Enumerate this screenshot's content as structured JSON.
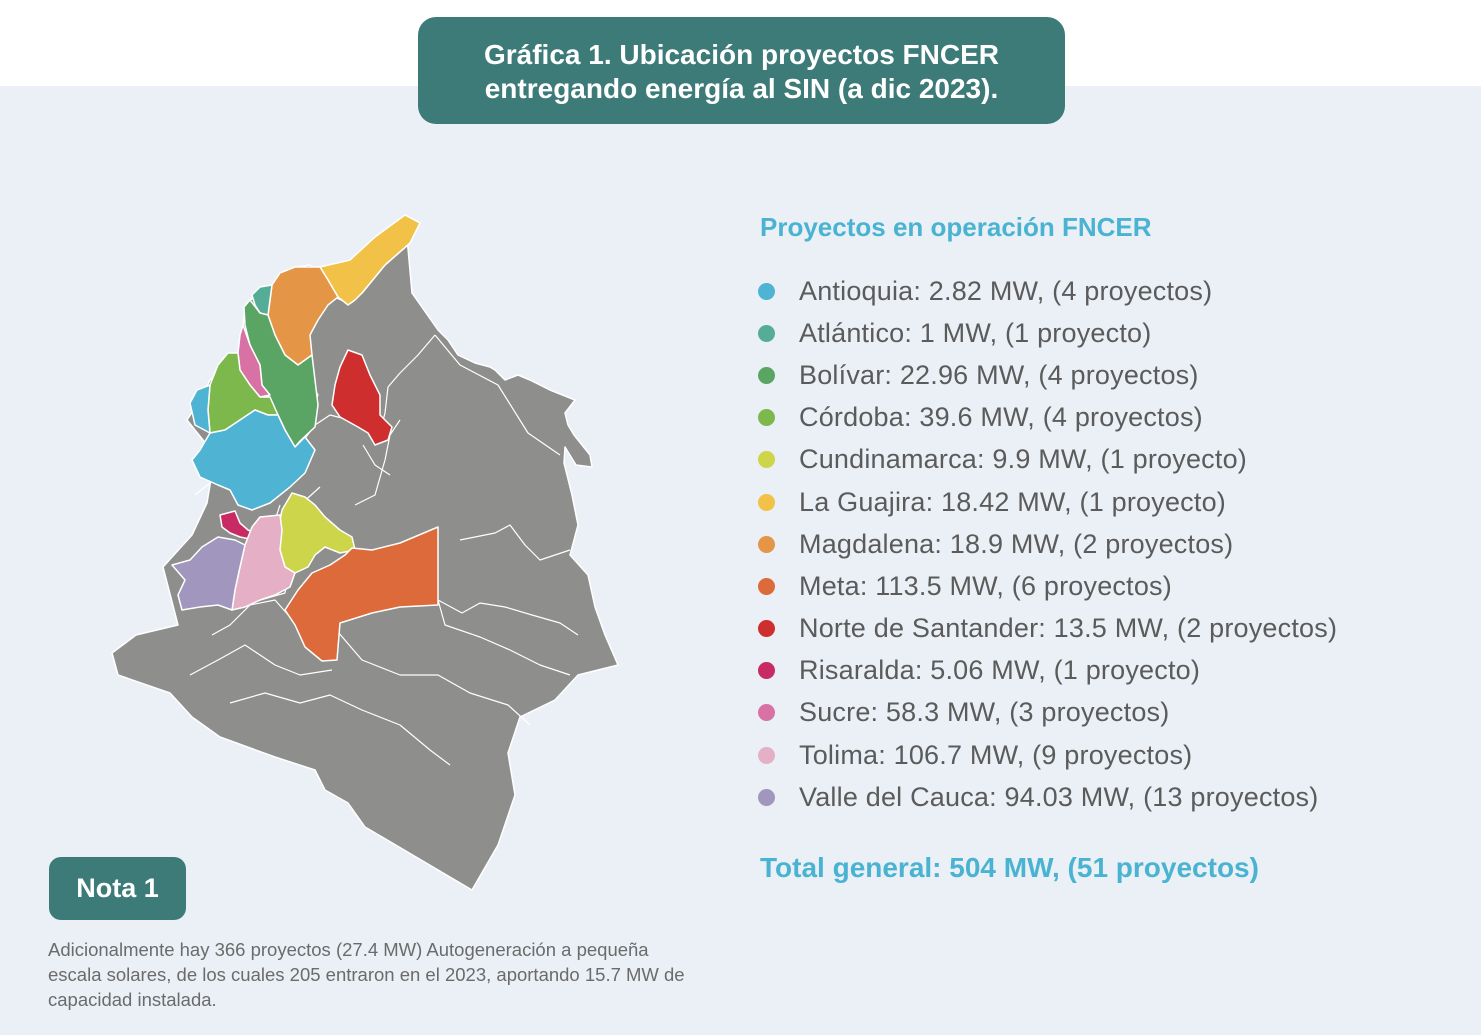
{
  "title": {
    "line1": "Gráfica 1. Ubicación proyectos FNCER",
    "line2": "entregando energía al SIN (a dic 2023)."
  },
  "legend": {
    "title": "Proyectos en operación FNCER",
    "items": [
      {
        "label": "Antioquia: 2.82 MW, (4 proyectos)",
        "color": "#4fb3d3",
        "mw": 2.82,
        "projects": 4
      },
      {
        "label": "Atlántico: 1 MW, (1 proyecto)",
        "color": "#56ad97",
        "mw": 1,
        "projects": 1
      },
      {
        "label": "Bolívar: 22.96 MW, (4 proyectos)",
        "color": "#5aa464",
        "mw": 22.96,
        "projects": 4
      },
      {
        "label": "Córdoba: 39.6 MW, (4 proyectos)",
        "color": "#7db84c",
        "mw": 39.6,
        "projects": 4
      },
      {
        "label": "Cundinamarca: 9.9 MW, (1 proyecto)",
        "color": "#cdd54a",
        "mw": 9.9,
        "projects": 1
      },
      {
        "label": "La Guajira: 18.42 MW, (1 proyecto)",
        "color": "#f1c247",
        "mw": 18.42,
        "projects": 1
      },
      {
        "label": "Magdalena: 18.9 MW, (2 proyectos)",
        "color": "#e49545",
        "mw": 18.9,
        "projects": 2
      },
      {
        "label": "Meta: 113.5 MW, (6 proyectos)",
        "color": "#dc6a3a",
        "mw": 113.5,
        "projects": 6
      },
      {
        "label": "Norte de Santander: 13.5 MW, (2 proyectos)",
        "color": "#cf2e2e",
        "mw": 13.5,
        "projects": 2
      },
      {
        "label": "Risaralda: 5.06 MW, (1 proyecto)",
        "color": "#c82a63",
        "mw": 5.06,
        "projects": 1
      },
      {
        "label": "Sucre: 58.3 MW, (3 proyectos)",
        "color": "#d972a4",
        "mw": 58.3,
        "projects": 3
      },
      {
        "label": "Tolima: 106.7 MW, (9 proyectos)",
        "color": "#e5b0c6",
        "mw": 106.7,
        "projects": 9
      },
      {
        "label": "Valle del Cauca: 94.03 MW, (13 proyectos)",
        "color": "#a196bd",
        "mw": 94.03,
        "projects": 13
      }
    ]
  },
  "total": "Total general: 504 MW, (51 proyectos)",
  "nota": {
    "badge": "Nota 1",
    "text": "Adicionalmente hay 366 proyectos (27.4 MW) Autogeneración a pequeña escala solares, de los cuales 205 entraron en el 2023, aportando 15.7 MW de capacidad instalada."
  },
  "colors": {
    "panel_bg": "#eaf0f6",
    "teal_box": "#3d7b78",
    "legend_accent": "#49b3d1",
    "map_gray": "#8e8e8c"
  }
}
